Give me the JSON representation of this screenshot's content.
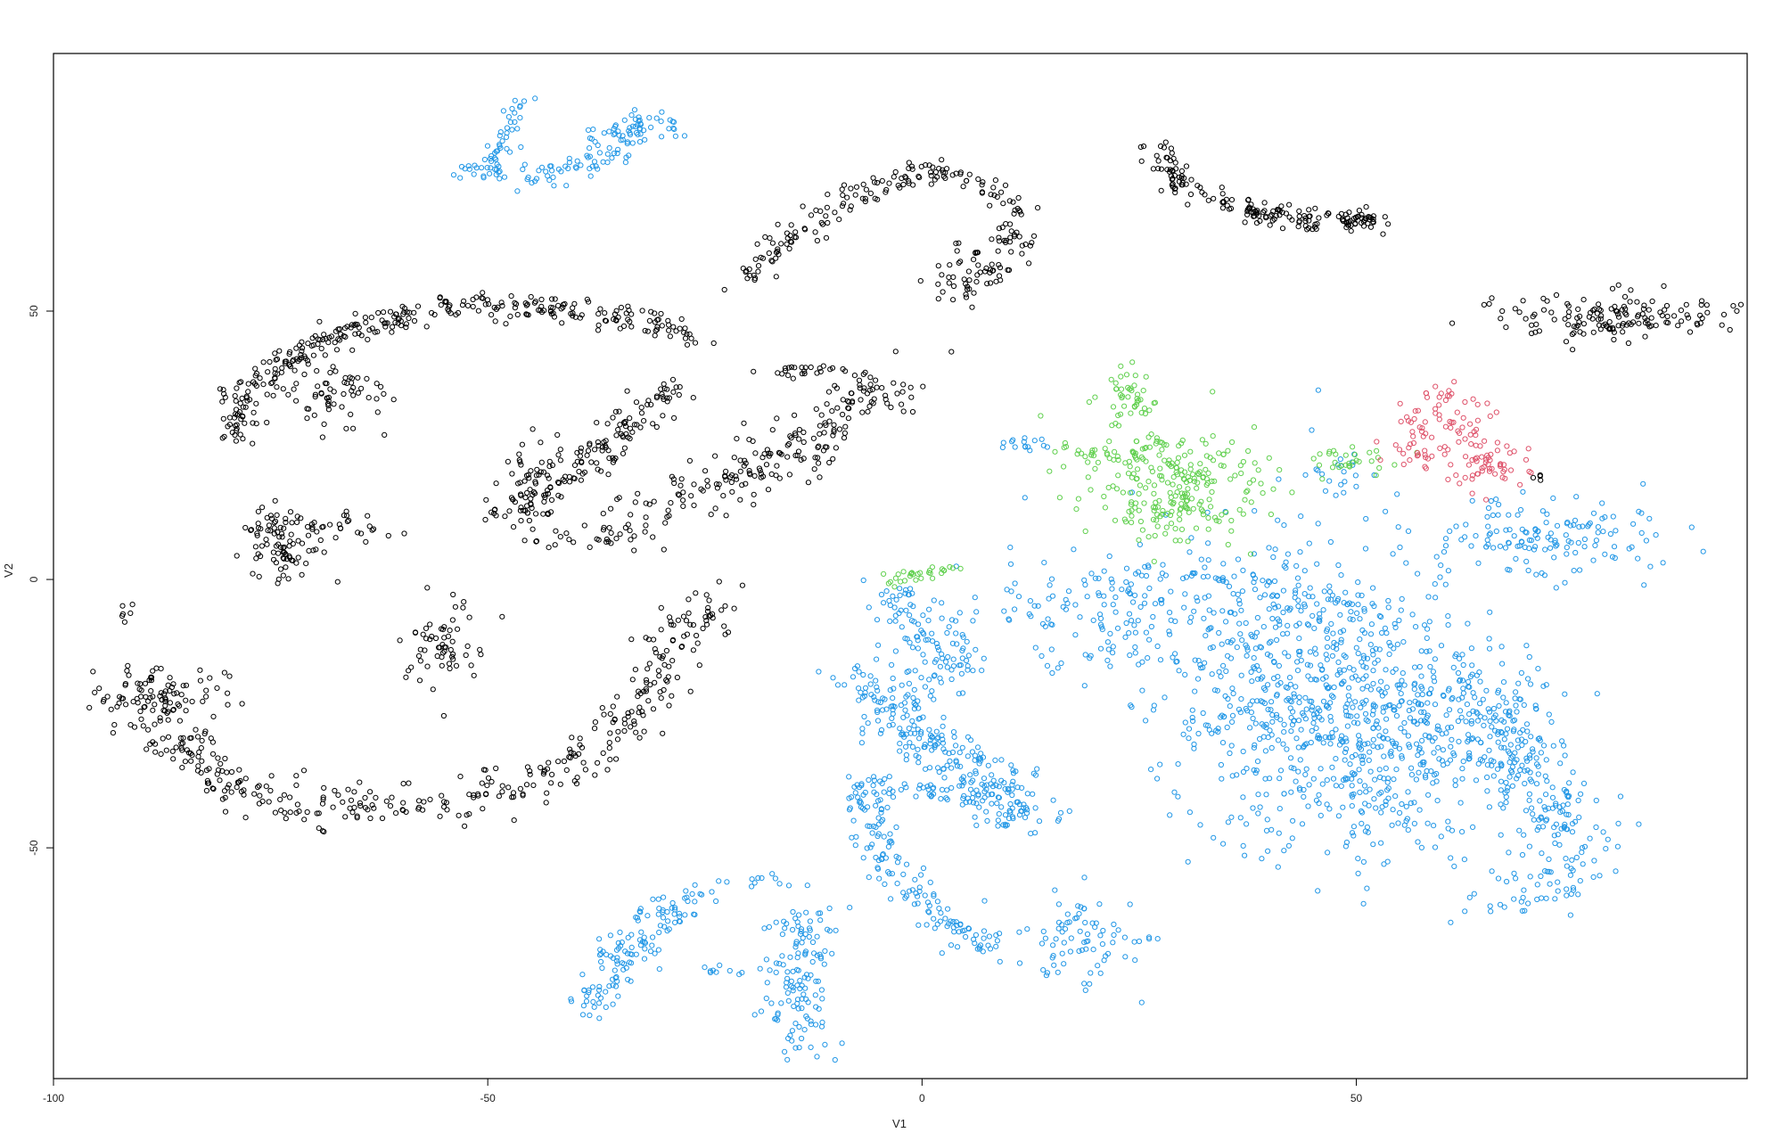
{
  "chart_data": {
    "type": "scatter",
    "title": "",
    "xlabel": "V1",
    "ylabel": "V2",
    "xlim": [
      -100,
      95
    ],
    "ylim": [
      -93,
      98
    ],
    "x_ticks": [
      {
        "value": -100,
        "label": "-100"
      },
      {
        "value": -50,
        "label": "-50"
      },
      {
        "value": 0,
        "label": "0"
      },
      {
        "value": 50,
        "label": "50"
      }
    ],
    "y_ticks": [
      {
        "value": -50,
        "label": "-50"
      },
      {
        "value": 0,
        "label": "0"
      },
      {
        "value": 50,
        "label": "50"
      }
    ],
    "marker": "open-circle",
    "grid": false,
    "legend": "none",
    "series": [
      {
        "color": "#000000",
        "clusters": [
          {
            "shape": "arc",
            "points": [
              [
                -79,
                26
              ],
              [
                -78,
                34
              ],
              [
                -74,
                40
              ],
              [
                -68,
                45
              ],
              [
                -60,
                49
              ],
              [
                -50,
                51
              ],
              [
                -40,
                50
              ],
              [
                -30,
                47
              ],
              [
                -27,
                45
              ]
            ],
            "spread": 1.2,
            "n": 320
          },
          {
            "shape": "blob",
            "cx": -67,
            "cy": 34,
            "sx": 3,
            "sy": 3,
            "n": 60
          },
          {
            "shape": "blob",
            "cx": -74,
            "cy": 7,
            "sx": 2.5,
            "sy": 4,
            "n": 90
          },
          {
            "shape": "blob",
            "cx": -66,
            "cy": 10,
            "sx": 3,
            "sy": 1.5,
            "n": 25
          },
          {
            "shape": "arc",
            "points": [
              [
                -47,
                12
              ],
              [
                -40,
                20
              ],
              [
                -34,
                28
              ],
              [
                -28,
                36
              ]
            ],
            "spread": 1.5,
            "n": 140
          },
          {
            "shape": "blob",
            "cx": -45,
            "cy": 17,
            "sx": 2,
            "sy": 5,
            "n": 50
          },
          {
            "shape": "blob",
            "cx": -37,
            "cy": 8,
            "sx": 3,
            "sy": 1.5,
            "n": 30
          },
          {
            "shape": "arc",
            "points": [
              [
                -32,
                14
              ],
              [
                -24,
                18
              ],
              [
                -15,
                24
              ],
              [
                -10,
                30
              ],
              [
                -5,
                36
              ],
              [
                0,
                38
              ]
            ],
            "spread": 2.5,
            "n": 200
          },
          {
            "shape": "blob",
            "cx": -14,
            "cy": 39,
            "sx": 3,
            "sy": 0.6,
            "n": 25
          },
          {
            "shape": "arc",
            "points": [
              [
                -21,
                56
              ],
              [
                -15,
                64
              ],
              [
                -8,
                71
              ],
              [
                0,
                76
              ],
              [
                6,
                75
              ],
              [
                11,
                68
              ],
              [
                10,
                60
              ],
              [
                5,
                53
              ]
            ],
            "spread": 1.2,
            "n": 200
          },
          {
            "shape": "blob",
            "cx": 4,
            "cy": 57,
            "sx": 2,
            "sy": 4,
            "n": 30
          },
          {
            "shape": "arc",
            "points": [
              [
                -91,
                -20
              ],
              [
                -87,
                -28
              ],
              [
                -82,
                -36
              ],
              [
                -75,
                -41
              ],
              [
                -65,
                -42
              ],
              [
                -55,
                -42
              ],
              [
                -45,
                -38
              ],
              [
                -38,
                -32
              ],
              [
                -33,
                -25
              ],
              [
                -30,
                -18
              ],
              [
                -28,
                -10
              ],
              [
                -23,
                -3
              ]
            ],
            "spread": 2.2,
            "n": 380
          },
          {
            "shape": "blob",
            "cx": -87,
            "cy": -21,
            "sx": 3.5,
            "sy": 2.5,
            "n": 70
          },
          {
            "shape": "blob",
            "cx": -55,
            "cy": -12,
            "sx": 2,
            "sy": 5,
            "n": 60
          },
          {
            "shape": "blob",
            "cx": -92,
            "cy": -6,
            "sx": 0.6,
            "sy": 1,
            "n": 6
          },
          {
            "shape": "arc",
            "points": [
              [
                27,
                81
              ],
              [
                30,
                73
              ],
              [
                36,
                69
              ],
              [
                45,
                67
              ],
              [
                53,
                67
              ]
            ],
            "spread": 1.2,
            "n": 160
          },
          {
            "shape": "blob",
            "cx": 51,
            "cy": 67,
            "sx": 1,
            "sy": 0.6,
            "n": 25
          },
          {
            "shape": "blob",
            "cx": 80,
            "cy": 49,
            "sx": 8,
            "sy": 2,
            "n": 150
          },
          {
            "shape": "blob",
            "cx": 71,
            "cy": 19,
            "sx": 0.5,
            "sy": 0.4,
            "n": 4
          }
        ]
      },
      {
        "color": "#2297E6",
        "clusters": [
          {
            "shape": "arc",
            "points": [
              [
                -50,
                75
              ],
              [
                -48,
                82
              ],
              [
                -46,
                89
              ]
            ],
            "spread": 0.8,
            "n": 40
          },
          {
            "shape": "arc",
            "points": [
              [
                -53,
                77
              ],
              [
                -45,
                75
              ],
              [
                -38,
                77
              ],
              [
                -34,
                80
              ],
              [
                -33,
                86
              ]
            ],
            "spread": 1.2,
            "n": 90
          },
          {
            "shape": "arc",
            "points": [
              [
                -40,
                79
              ],
              [
                -35,
                84
              ],
              [
                -30,
                86
              ],
              [
                -29,
                83
              ]
            ],
            "spread": 1,
            "n": 40
          },
          {
            "shape": "blob",
            "cx": 25,
            "cy": -5,
            "sx": 10,
            "sy": 6,
            "n": 200
          },
          {
            "shape": "blob",
            "cx": 44,
            "cy": -20,
            "sx": 9,
            "sy": 14,
            "n": 650
          },
          {
            "shape": "blob",
            "cx": 57,
            "cy": -30,
            "sx": 7,
            "sy": 11,
            "n": 320
          },
          {
            "shape": "arc",
            "points": [
              [
                64,
                -20
              ],
              [
                68,
                -30
              ],
              [
                72,
                -40
              ],
              [
                75,
                -50
              ],
              [
                74,
                -58
              ]
            ],
            "spread": 3,
            "n": 230
          },
          {
            "shape": "blob",
            "cx": 72,
            "cy": 8,
            "sx": 7,
            "sy": 3.5,
            "n": 140
          },
          {
            "shape": "blob",
            "cx": 48,
            "cy": 21,
            "sx": 3,
            "sy": 1.5,
            "n": 15
          },
          {
            "shape": "blob",
            "cx": 12,
            "cy": 25,
            "sx": 2.5,
            "sy": 1,
            "n": 15
          },
          {
            "shape": "arc",
            "points": [
              [
                -7,
                -18
              ],
              [
                -3,
                -25
              ],
              [
                3,
                -33
              ],
              [
                8,
                -38
              ],
              [
                12,
                -45
              ]
            ],
            "spread": 2.5,
            "n": 260
          },
          {
            "shape": "arc",
            "points": [
              [
                -3,
                -3
              ],
              [
                0,
                -8
              ],
              [
                2,
                -15
              ],
              [
                4,
                -20
              ]
            ],
            "spread": 2,
            "n": 100
          },
          {
            "shape": "arc",
            "points": [
              [
                -7,
                -38
              ],
              [
                -3,
                -55
              ],
              [
                2,
                -63
              ],
              [
                8,
                -70
              ]
            ],
            "spread": 1.5,
            "n": 150
          },
          {
            "shape": "arc",
            "points": [
              [
                -6,
                -38
              ],
              [
                4,
                -40
              ],
              [
                12,
                -43
              ]
            ],
            "spread": 1,
            "n": 50
          },
          {
            "shape": "arc",
            "points": [
              [
                -13,
                -88
              ],
              [
                -15,
                -80
              ],
              [
                -15,
                -70
              ],
              [
                -13,
                -62
              ]
            ],
            "spread": 2,
            "n": 130
          },
          {
            "shape": "arc",
            "points": [
              [
                -38,
                -80
              ],
              [
                -34,
                -70
              ],
              [
                -30,
                -62
              ],
              [
                -25,
                -59
              ]
            ],
            "spread": 1.8,
            "n": 130
          },
          {
            "shape": "blob",
            "cx": 18,
            "cy": -67,
            "sx": 4,
            "sy": 5,
            "n": 80
          },
          {
            "shape": "blob",
            "cx": -22,
            "cy": -73,
            "sx": 3,
            "sy": 0.6,
            "n": 12
          },
          {
            "shape": "blob",
            "cx": -18,
            "cy": -56,
            "sx": 3,
            "sy": 0.6,
            "n": 12
          },
          {
            "shape": "blob",
            "cx": 67,
            "cy": -58,
            "sx": 2,
            "sy": 2.5,
            "n": 18
          }
        ]
      },
      {
        "color": "#61D04F",
        "clusters": [
          {
            "shape": "blob",
            "cx": 29,
            "cy": 17,
            "sx": 5,
            "sy": 5,
            "n": 230
          },
          {
            "shape": "blob",
            "cx": 24,
            "cy": 34,
            "sx": 1.6,
            "sy": 2.5,
            "n": 45
          },
          {
            "shape": "arc",
            "points": [
              [
                16,
                25
              ],
              [
                20,
                23
              ],
              [
                24,
                24
              ],
              [
                28,
                26
              ]
            ],
            "spread": 0.8,
            "n": 40
          },
          {
            "shape": "blob",
            "cx": 50,
            "cy": 22,
            "sx": 4,
            "sy": 1.5,
            "n": 30
          },
          {
            "shape": "arc",
            "points": [
              [
                -4,
                0
              ],
              [
                0,
                1
              ],
              [
                5,
                2
              ]
            ],
            "spread": 0.7,
            "n": 30
          }
        ]
      },
      {
        "color": "#DF536B",
        "clusters": [
          {
            "shape": "arc",
            "points": [
              [
                57,
                27
              ],
              [
                61,
                34
              ],
              [
                63,
                28
              ],
              [
                66,
                22
              ],
              [
                65,
                18
              ]
            ],
            "spread": 2,
            "n": 110
          },
          {
            "shape": "blob",
            "cx": 57,
            "cy": 24,
            "sx": 2.5,
            "sy": 2,
            "n": 25
          },
          {
            "shape": "blob",
            "cx": 70,
            "cy": 20,
            "sx": 0.4,
            "sy": 0.3,
            "n": 2
          }
        ]
      }
    ]
  }
}
